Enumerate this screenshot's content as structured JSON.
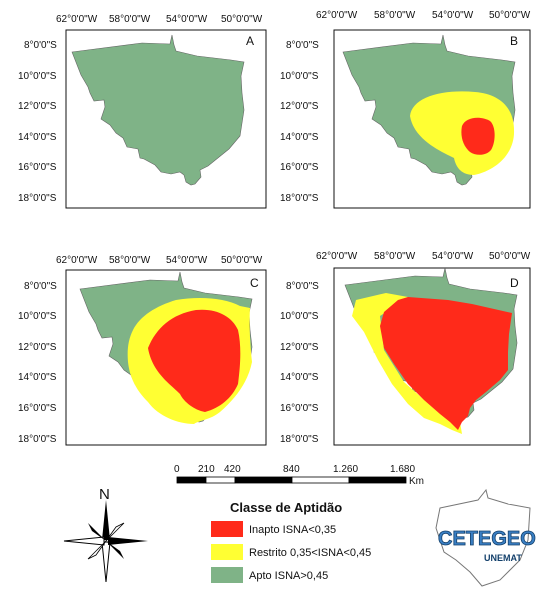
{
  "lon_labels": [
    "62°0'0\"W",
    "58°0'0\"W",
    "54°0'0\"W",
    "50°0'0\"W"
  ],
  "lat_labels": [
    "8°0'0\"S",
    "10°0'0\"S",
    "12°0'0\"S",
    "14°0'0\"S",
    "16°0'0\"S",
    "18°0'0\"S"
  ],
  "panels": [
    {
      "letter": "A"
    },
    {
      "letter": "B"
    },
    {
      "letter": "C"
    },
    {
      "letter": "D"
    }
  ],
  "scale": {
    "labels": [
      "0",
      "210",
      "420",
      "840",
      "1.260",
      "1.680"
    ],
    "unit": "Km"
  },
  "compass": {
    "north": "N"
  },
  "legend": {
    "title": "Classe de Aptidão",
    "items": [
      {
        "label": "Inapto ISNA<0,35",
        "color": "#ff2a1a"
      },
      {
        "label": "Restrito 0,35<ISNA<0,45",
        "color": "#ffff33"
      },
      {
        "label": "Apto ISNA>0,45",
        "color": "#7fb387"
      }
    ]
  },
  "logo": {
    "main": "CETEGEO",
    "sub": "UNEMAT"
  }
}
